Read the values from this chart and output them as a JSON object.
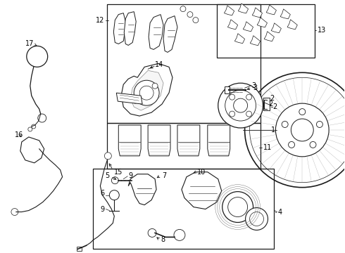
{
  "background_color": "#ffffff",
  "line_color": "#1a1a1a",
  "label_color": "#000000",
  "figsize": [
    4.9,
    3.6
  ],
  "dpi": 100,
  "lw_main": 0.8,
  "lw_thin": 0.5,
  "font_size": 7.0
}
